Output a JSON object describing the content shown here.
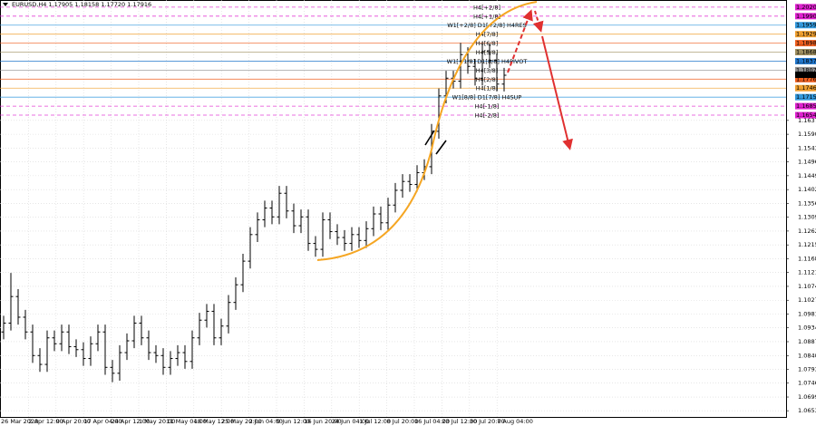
{
  "chart_data": {
    "type": "ohlc",
    "title": "EURUSD,H4  1.17905 1.18158 1.17720 1.17916",
    "color": "#000000",
    "grid": true,
    "ylim": [
      1.0632,
      1.2045
    ],
    "yticks": [
      {
        "value": 1.0653,
        "label": "1.06530"
      },
      1.06995,
      1.07465,
      1.07935,
      {
        "value": 1.084,
        "label": "1.08400"
      },
      {
        "value": 1.0887,
        "label": "1.08870"
      },
      {
        "value": 1.0934,
        "label": "1.09340"
      },
      {
        "value": 1.0981,
        "label": "1.09810"
      },
      1.10275,
      1.10745,
      1.11215,
      1.11685,
      {
        "value": 1.1215,
        "label": "1.12150"
      },
      {
        "value": 1.1262,
        "label": "1.12620"
      },
      {
        "value": 1.1309,
        "label": "1.13090"
      },
      {
        "value": 1.1356,
        "label": "1.13560"
      },
      1.14025,
      1.14495,
      1.14965,
      1.15435,
      {
        "value": 1.159,
        "label": "1.15900"
      },
      {
        "value": 1.1637,
        "label": "1.16370"
      }
    ],
    "x_labels": [
      "26 Mar 2020",
      "2 Apr 12:00",
      "9 Apr 20:00",
      "17 Apr 04:00",
      "24 Apr 12:00",
      "1 May 20:00",
      "11 May 04:00",
      "18 May 12:00",
      "25 May 20:00",
      "2 Jun 04:00",
      "9 Jun 12:00",
      "16 Jun 20:00",
      "24 Jun 04:00",
      "1 Jul 12:00",
      "8 Jul 20:00",
      "16 Jul 04:00",
      "23 Jul 12:00",
      "30 Jul 20:00",
      "7 Aug 04:00"
    ],
    "open": [
      1.092,
      1.095,
      1.104,
      1.097,
      1.092,
      1.084,
      1.081,
      1.09,
      1.088,
      1.092,
      1.087,
      1.086,
      1.083,
      1.088,
      1.092,
      1.08,
      1.078,
      1.085,
      1.089,
      1.095,
      1.09,
      1.085,
      1.084,
      1.08,
      1.083,
      1.085,
      1.082,
      1.09,
      1.096,
      1.099,
      1.09,
      1.094,
      1.102,
      1.108,
      1.116,
      1.125,
      1.13,
      1.134,
      1.131,
      1.139,
      1.133,
      1.128,
      1.131,
      1.122,
      1.12,
      1.13,
      1.126,
      1.124,
      1.122,
      1.125,
      1.123,
      1.127,
      1.132,
      1.129,
      1.135,
      1.14,
      1.143,
      1.142,
      1.146,
      1.148,
      1.16,
      1.172,
      1.178,
      1.177,
      1.186,
      1.182,
      1.178,
      1.187,
      1.184,
      1.176
    ],
    "high": [
      1.0975,
      1.112,
      1.1065,
      1.0995,
      1.0945,
      1.0865,
      1.0925,
      1.0925,
      1.0945,
      1.0945,
      1.0895,
      1.0885,
      1.0905,
      1.0945,
      1.0945,
      1.0825,
      1.0875,
      1.0915,
      1.0975,
      1.0975,
      1.0925,
      1.0875,
      1.0865,
      1.0855,
      1.0875,
      1.0875,
      1.0925,
      1.0985,
      1.1015,
      1.1015,
      1.0965,
      1.1045,
      1.1105,
      1.1185,
      1.1275,
      1.1325,
      1.1365,
      1.1365,
      1.1415,
      1.1415,
      1.1355,
      1.1335,
      1.1335,
      1.1245,
      1.1325,
      1.1325,
      1.1285,
      1.1265,
      1.1275,
      1.1275,
      1.1295,
      1.1345,
      1.1345,
      1.1375,
      1.1425,
      1.1455,
      1.1455,
      1.1485,
      1.1505,
      1.1625,
      1.1745,
      1.1805,
      1.1805,
      1.19,
      1.1885,
      1.1845,
      1.1895,
      1.1895,
      1.1865,
      1.1815
    ],
    "low": [
      1.0895,
      1.0925,
      1.0945,
      1.0895,
      1.0815,
      1.0785,
      1.0785,
      1.0855,
      1.0855,
      1.0845,
      1.0835,
      1.0805,
      1.0805,
      1.0855,
      1.0775,
      1.075,
      1.0755,
      1.0825,
      1.0865,
      1.0875,
      1.0825,
      1.0815,
      1.0775,
      1.0775,
      1.0805,
      1.0795,
      1.0795,
      1.0875,
      1.0935,
      1.0875,
      1.0875,
      1.0915,
      1.0995,
      1.1055,
      1.1135,
      1.1225,
      1.1275,
      1.1285,
      1.1285,
      1.1305,
      1.1255,
      1.1255,
      1.1195,
      1.1175,
      1.1175,
      1.1235,
      1.1215,
      1.1195,
      1.1195,
      1.1205,
      1.1205,
      1.1245,
      1.1265,
      1.1265,
      1.1325,
      1.1375,
      1.1395,
      1.1395,
      1.1435,
      1.1455,
      1.1575,
      1.1695,
      1.1745,
      1.1745,
      1.1795,
      1.1755,
      1.1755,
      1.1815,
      1.1735,
      1.1735
    ],
    "close": [
      1.095,
      1.104,
      1.097,
      1.092,
      1.084,
      1.081,
      1.09,
      1.088,
      1.092,
      1.087,
      1.086,
      1.083,
      1.088,
      1.092,
      1.08,
      1.078,
      1.085,
      1.089,
      1.095,
      1.09,
      1.085,
      1.084,
      1.08,
      1.083,
      1.085,
      1.082,
      1.09,
      1.096,
      1.099,
      1.09,
      1.094,
      1.102,
      1.108,
      1.116,
      1.125,
      1.13,
      1.134,
      1.131,
      1.139,
      1.133,
      1.128,
      1.131,
      1.122,
      1.12,
      1.13,
      1.126,
      1.124,
      1.122,
      1.125,
      1.123,
      1.127,
      1.132,
      1.129,
      1.135,
      1.14,
      1.143,
      1.142,
      1.146,
      1.148,
      1.16,
      1.172,
      1.178,
      1.177,
      1.186,
      1.182,
      1.178,
      1.187,
      1.184,
      1.176,
      1.179
    ],
    "last_price": 1.17916,
    "levels": [
      {
        "name": "H4[+2/8]",
        "price": 1.20208,
        "color": "#e020d0",
        "dashed": true
      },
      {
        "name": "H4[+1/8]",
        "price": 1.19903,
        "color": "#e020d0",
        "dashed": true
      },
      {
        "name": "W1[+2/8] D1[+2/8] H4RES",
        "price": 1.19598,
        "color": "#3399dd",
        "dashed": false
      },
      {
        "name": "H4[7/8]",
        "price": 1.19293,
        "color": "#f0a030",
        "dashed": false
      },
      {
        "name": "H4[6/8]",
        "price": 1.18988,
        "color": "#f06020",
        "dashed": false
      },
      {
        "name": "H4[5/8]",
        "price": 1.18683,
        "color": "#a09060",
        "dashed": false
      },
      {
        "name": "W1[+1/8] D1[8/8] H4PIVOT",
        "price": 1.18378,
        "color": "#2277cc",
        "dashed": false
      },
      {
        "name": "H4[3/8]",
        "price": 1.18073,
        "color": "#909090",
        "dashed": false
      },
      {
        "name": "H4[2/8]",
        "price": 1.17768,
        "color": "#f06020",
        "dashed": false
      },
      {
        "name": "H4[1/8]",
        "price": 1.17463,
        "color": "#f0a030",
        "dashed": false
      },
      {
        "name": "W1[8/8] D1[7/8] H4SUP",
        "price": 1.17158,
        "color": "#3399dd",
        "dashed": false
      },
      {
        "name": "H4[-1/8]",
        "price": 1.16853,
        "color": "#e020d0",
        "dashed": true
      },
      {
        "name": "H4[-2/8]",
        "price": 1.16548,
        "color": "#e020d0",
        "dashed": true
      }
    ]
  }
}
